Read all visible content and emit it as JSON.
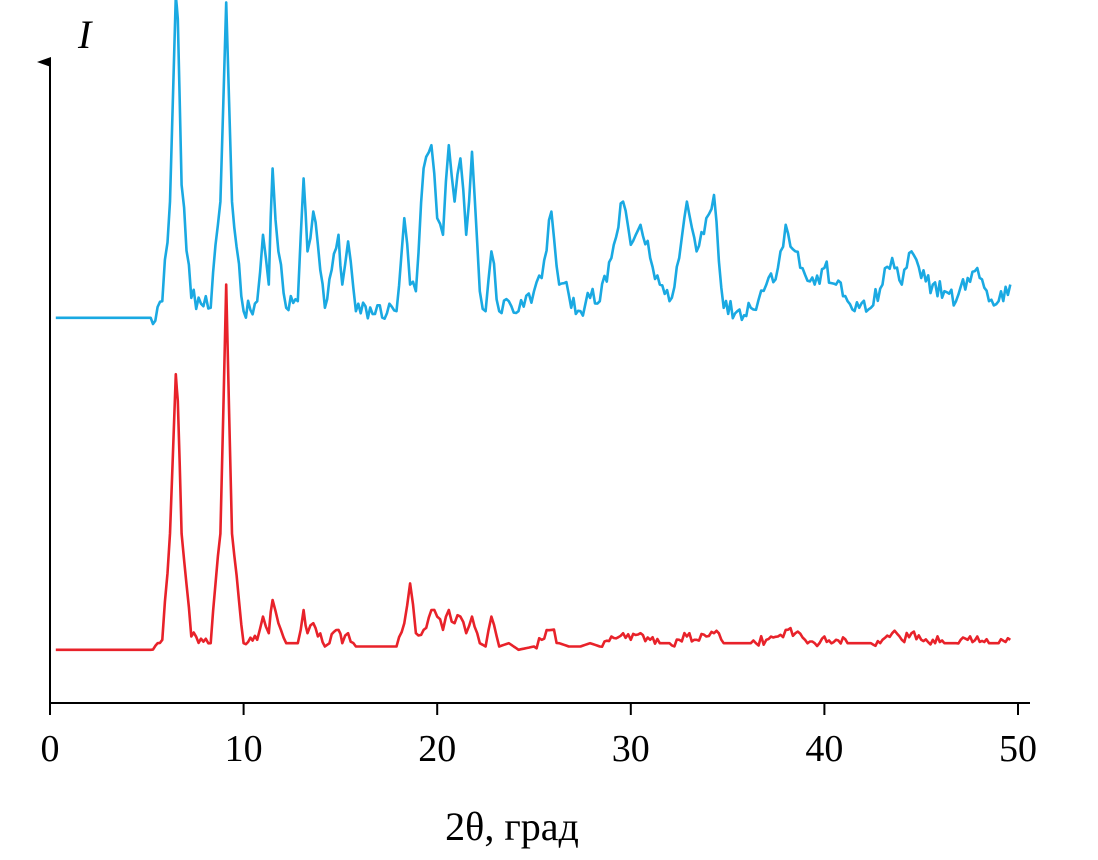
{
  "chart_data": {
    "type": "line",
    "xlabel": "2θ, град",
    "ylabel": "I",
    "xlim": [
      0,
      50
    ],
    "xticks": [
      0,
      10,
      20,
      30,
      40,
      50
    ],
    "ylim": [
      0,
      2.5
    ],
    "grid": false,
    "series": [
      {
        "color": "#1aa9e2",
        "baseline": 1.1,
        "x": [
          0.3,
          5.2,
          5.8,
          6.2,
          6.5,
          6.6,
          6.8,
          7.3,
          8.3,
          8.8,
          9.1,
          9.4,
          10.0,
          10.7,
          11.0,
          11.3,
          11.5,
          11.8,
          12.2,
          12.8,
          13.1,
          13.3,
          13.6,
          14.2,
          14.9,
          15.1,
          15.4,
          15.8,
          17.9,
          18.3,
          18.6,
          18.9,
          19.3,
          19.7,
          20.0,
          20.3,
          20.6,
          20.9,
          21.2,
          21.5,
          21.8,
          22.2,
          22.5,
          22.8,
          23.2,
          23.7,
          24.2,
          25.0,
          25.4,
          25.9,
          26.3,
          26.8,
          27.4,
          27.9,
          28.4,
          29.0,
          29.6,
          30.0,
          30.5,
          31.0,
          31.5,
          32.0,
          32.5,
          32.9,
          33.4,
          33.9,
          34.3,
          34.8,
          35.5,
          36.2,
          37.0,
          37.6,
          38.0,
          38.5,
          39.0,
          39.5,
          40.0,
          40.6,
          41.2,
          41.8,
          42.4,
          43.0,
          43.5,
          44.0,
          44.5,
          45.0,
          45.6,
          46.2,
          46.8,
          47.4,
          47.9,
          48.5,
          49.0,
          49.6
        ],
        "y": [
          1.1,
          1.1,
          1.15,
          1.45,
          2.07,
          2.0,
          1.5,
          1.16,
          1.13,
          1.45,
          2.05,
          1.45,
          1.12,
          1.15,
          1.35,
          1.2,
          1.55,
          1.3,
          1.13,
          1.15,
          1.52,
          1.3,
          1.42,
          1.13,
          1.35,
          1.2,
          1.33,
          1.12,
          1.12,
          1.4,
          1.2,
          1.18,
          1.55,
          1.62,
          1.4,
          1.35,
          1.62,
          1.45,
          1.58,
          1.35,
          1.6,
          1.18,
          1.12,
          1.3,
          1.12,
          1.15,
          1.12,
          1.18,
          1.22,
          1.42,
          1.2,
          1.17,
          1.12,
          1.16,
          1.15,
          1.28,
          1.45,
          1.32,
          1.38,
          1.28,
          1.2,
          1.15,
          1.28,
          1.45,
          1.3,
          1.4,
          1.47,
          1.13,
          1.12,
          1.13,
          1.2,
          1.25,
          1.38,
          1.3,
          1.23,
          1.2,
          1.25,
          1.2,
          1.15,
          1.13,
          1.13,
          1.2,
          1.28,
          1.2,
          1.3,
          1.22,
          1.2,
          1.18,
          1.15,
          1.22,
          1.25,
          1.15,
          1.15,
          1.2
        ]
      },
      {
        "color": "#e8222a",
        "baseline": 0.1,
        "x": [
          0.3,
          5.2,
          5.8,
          6.2,
          6.5,
          6.6,
          6.8,
          7.3,
          8.3,
          8.8,
          9.1,
          9.4,
          10.0,
          10.7,
          11.0,
          11.3,
          11.5,
          11.8,
          12.2,
          12.8,
          13.1,
          13.3,
          13.6,
          14.2,
          14.9,
          15.1,
          15.4,
          15.8,
          17.9,
          18.3,
          18.6,
          18.9,
          19.3,
          19.7,
          20.0,
          20.3,
          20.6,
          20.9,
          21.2,
          21.5,
          21.8,
          22.2,
          22.5,
          22.8,
          23.2,
          23.7,
          24.2,
          25.0,
          25.4,
          25.9,
          26.3,
          26.8,
          27.4,
          27.9,
          28.4,
          29.0,
          29.6,
          30.0,
          30.5,
          31.0,
          31.5,
          32.0,
          32.5,
          32.9,
          33.4,
          33.9,
          34.3,
          34.8,
          35.5,
          36.2,
          37.0,
          37.6,
          38.0,
          38.5,
          39.0,
          39.5,
          40.0,
          40.6,
          41.2,
          41.8,
          42.4,
          43.0,
          43.5,
          44.0,
          44.5,
          45.0,
          45.6,
          46.2,
          46.8,
          47.4,
          47.9,
          48.5,
          49.0,
          49.6
        ],
        "y": [
          0.1,
          0.1,
          0.13,
          0.45,
          0.93,
          0.85,
          0.45,
          0.14,
          0.12,
          0.45,
          1.2,
          0.45,
          0.12,
          0.13,
          0.2,
          0.15,
          0.25,
          0.18,
          0.12,
          0.12,
          0.22,
          0.15,
          0.18,
          0.11,
          0.16,
          0.12,
          0.15,
          0.11,
          0.11,
          0.18,
          0.3,
          0.15,
          0.16,
          0.22,
          0.2,
          0.16,
          0.22,
          0.18,
          0.2,
          0.15,
          0.2,
          0.12,
          0.11,
          0.2,
          0.11,
          0.12,
          0.1,
          0.11,
          0.13,
          0.16,
          0.12,
          0.11,
          0.11,
          0.12,
          0.11,
          0.14,
          0.15,
          0.13,
          0.15,
          0.13,
          0.12,
          0.12,
          0.13,
          0.14,
          0.13,
          0.14,
          0.15,
          0.12,
          0.12,
          0.12,
          0.13,
          0.14,
          0.16,
          0.15,
          0.13,
          0.12,
          0.14,
          0.13,
          0.12,
          0.12,
          0.12,
          0.13,
          0.15,
          0.13,
          0.15,
          0.13,
          0.13,
          0.12,
          0.12,
          0.13,
          0.14,
          0.12,
          0.12,
          0.13
        ]
      }
    ]
  }
}
